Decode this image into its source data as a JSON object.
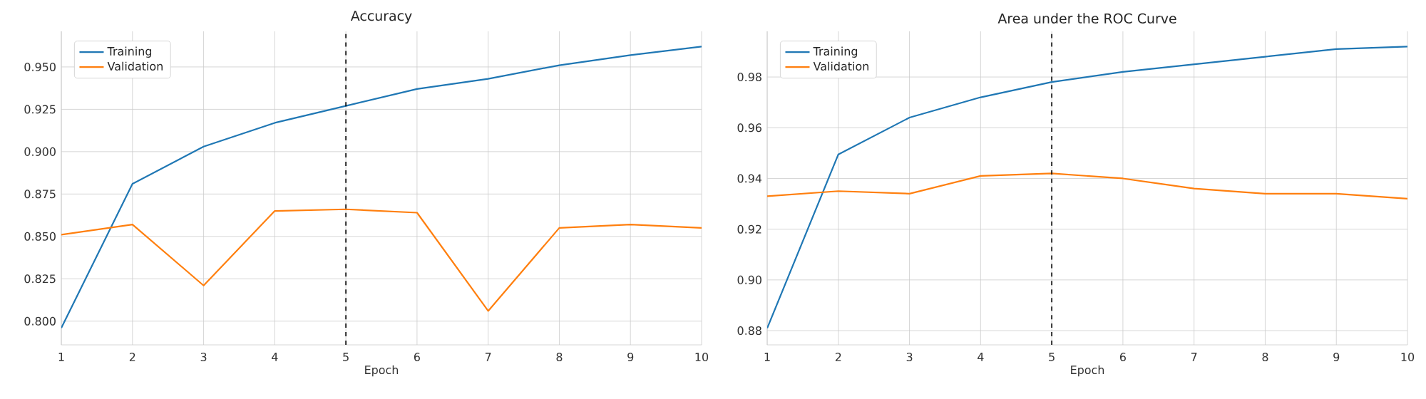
{
  "chart_data": [
    {
      "type": "line",
      "title": "Accuracy",
      "xlabel": "Epoch",
      "x": [
        1,
        2,
        3,
        4,
        5,
        6,
        7,
        8,
        9,
        10
      ],
      "series": [
        {
          "name": "Training",
          "color": "#1f77b4",
          "values": [
            0.796,
            0.881,
            0.903,
            0.917,
            0.927,
            0.937,
            0.943,
            0.951,
            0.957,
            0.962
          ]
        },
        {
          "name": "Validation",
          "color": "#ff7f0e",
          "values": [
            0.851,
            0.857,
            0.821,
            0.865,
            0.866,
            0.864,
            0.806,
            0.855,
            0.857,
            0.855
          ]
        }
      ],
      "xlim": [
        1,
        10
      ],
      "xticks": [
        1,
        2,
        3,
        4,
        5,
        6,
        7,
        8,
        9,
        10
      ],
      "ylim": [
        0.786,
        0.971
      ],
      "yticks": [
        {
          "value": 0.8,
          "label": "0.800"
        },
        {
          "value": 0.825,
          "label": "0.825"
        },
        {
          "value": 0.85,
          "label": "0.850"
        },
        {
          "value": 0.875,
          "label": "0.875"
        },
        {
          "value": 0.9,
          "label": "0.900"
        },
        {
          "value": 0.925,
          "label": "0.925"
        },
        {
          "value": 0.95,
          "label": "0.950"
        }
      ],
      "ref_lines": [
        {
          "axis": "x",
          "value": 5,
          "color": "#000000",
          "line_style": "dashed"
        }
      ],
      "grid": true,
      "legend": "top left"
    },
    {
      "type": "line",
      "title": "Area under the ROC Curve",
      "xlabel": "Epoch",
      "x": [
        1,
        2,
        3,
        4,
        5,
        6,
        7,
        8,
        9,
        10
      ],
      "series": [
        {
          "name": "Training",
          "color": "#1f77b4",
          "values": [
            0.881,
            0.9495,
            0.964,
            0.972,
            0.978,
            0.982,
            0.985,
            0.988,
            0.991,
            0.992
          ]
        },
        {
          "name": "Validation",
          "color": "#ff7f0e",
          "values": [
            0.933,
            0.935,
            0.934,
            0.941,
            0.942,
            0.94,
            0.936,
            0.934,
            0.934,
            0.932
          ]
        }
      ],
      "xlim": [
        1,
        10
      ],
      "xticks": [
        1,
        2,
        3,
        4,
        5,
        6,
        7,
        8,
        9,
        10
      ],
      "ylim": [
        0.8744,
        0.998
      ],
      "yticks": [
        0.88,
        {
          "value": 0.9,
          "label": "0.90"
        },
        0.92,
        0.94,
        0.96,
        0.98
      ],
      "ref_lines": [
        {
          "axis": "x",
          "value": 5,
          "color": "#000000",
          "line_style": "dashed"
        }
      ],
      "grid": true,
      "legend": "top left"
    }
  ]
}
